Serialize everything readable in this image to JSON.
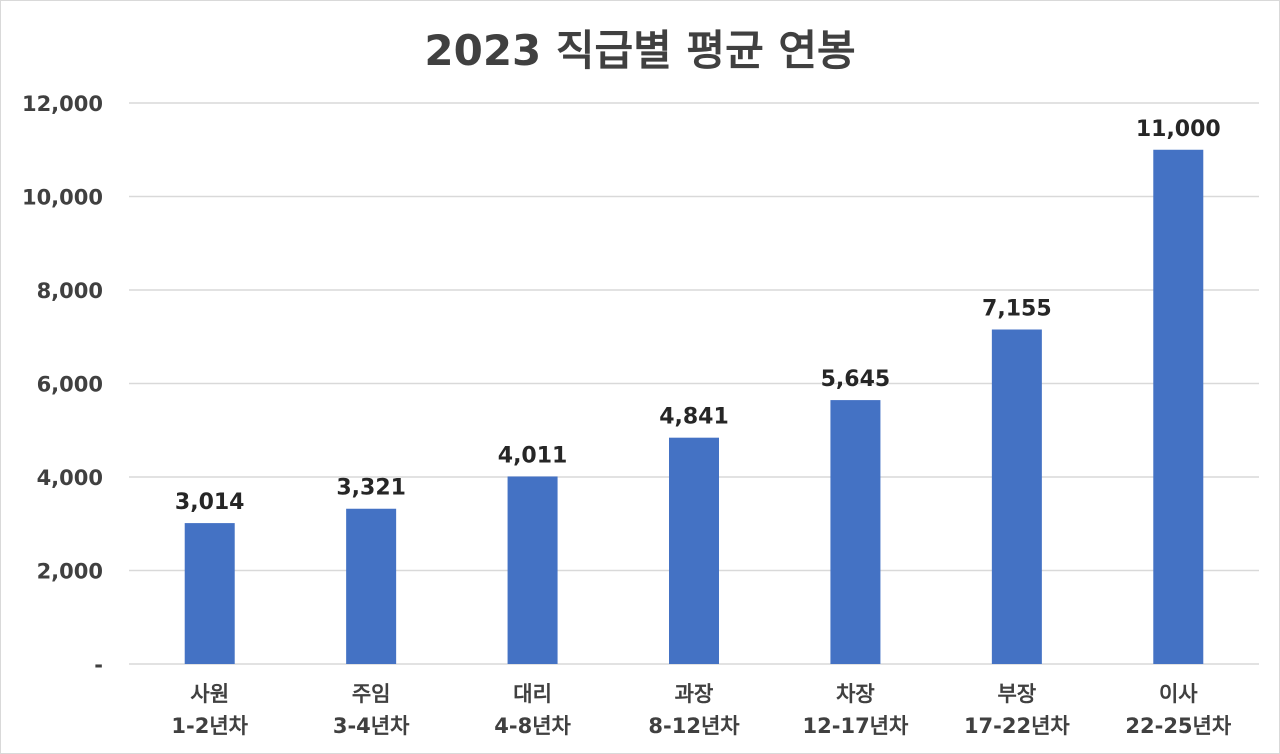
{
  "chart_data": {
    "type": "bar",
    "title": "2023 직급별 평균 연봉",
    "xlabel": "",
    "ylabel": "",
    "categories": [
      [
        "사원",
        "1-2년차"
      ],
      [
        "주임",
        "3-4년차"
      ],
      [
        "대리",
        "4-8년차"
      ],
      [
        "과장",
        "8-12년차"
      ],
      [
        "차장",
        "12-17년차"
      ],
      [
        "부장",
        "17-22년차"
      ],
      [
        "이사",
        "22-25년차"
      ]
    ],
    "values": [
      3014,
      3321,
      4011,
      4841,
      5645,
      7155,
      11000
    ],
    "data_labels": [
      "3,014",
      "3,321",
      "4,011",
      "4,841",
      "5,645",
      "7,155",
      "11,000"
    ],
    "ylim": [
      0,
      12000
    ],
    "yticks": [
      0,
      2000,
      4000,
      6000,
      8000,
      10000,
      12000
    ],
    "ytick_labels": [
      "-",
      "2,000",
      "4,000",
      "6,000",
      "8,000",
      "10,000",
      "12,000"
    ],
    "grid": true,
    "legend": "none",
    "bar_color": "#4472c4"
  }
}
